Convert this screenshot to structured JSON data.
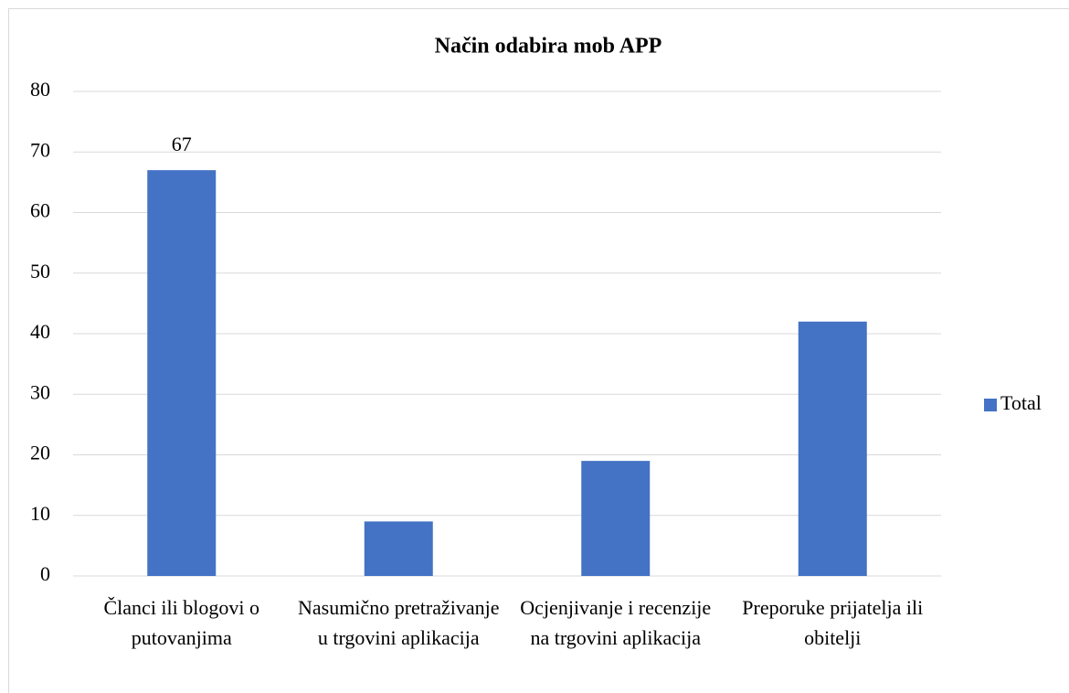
{
  "chart_data": {
    "type": "bar",
    "title": "Način odabira mob APP",
    "categories": [
      "Članci ili blogovi o putovanjima",
      "Nasumično pretraživanje u trgovini aplikacija",
      "Ocjenjivanje i recenzije na trgovini aplikacija",
      "Preporuke prijatelja ili obitelji"
    ],
    "series": [
      {
        "name": "Total",
        "color": "#4472c4",
        "values": [
          67,
          9,
          19,
          42
        ],
        "value_labels": [
          "67",
          null,
          null,
          null
        ]
      }
    ],
    "ylim": [
      0,
      80
    ],
    "yticks": [
      0,
      10,
      20,
      30,
      40,
      50,
      60,
      70,
      80
    ],
    "grid": true,
    "legend": "right"
  }
}
